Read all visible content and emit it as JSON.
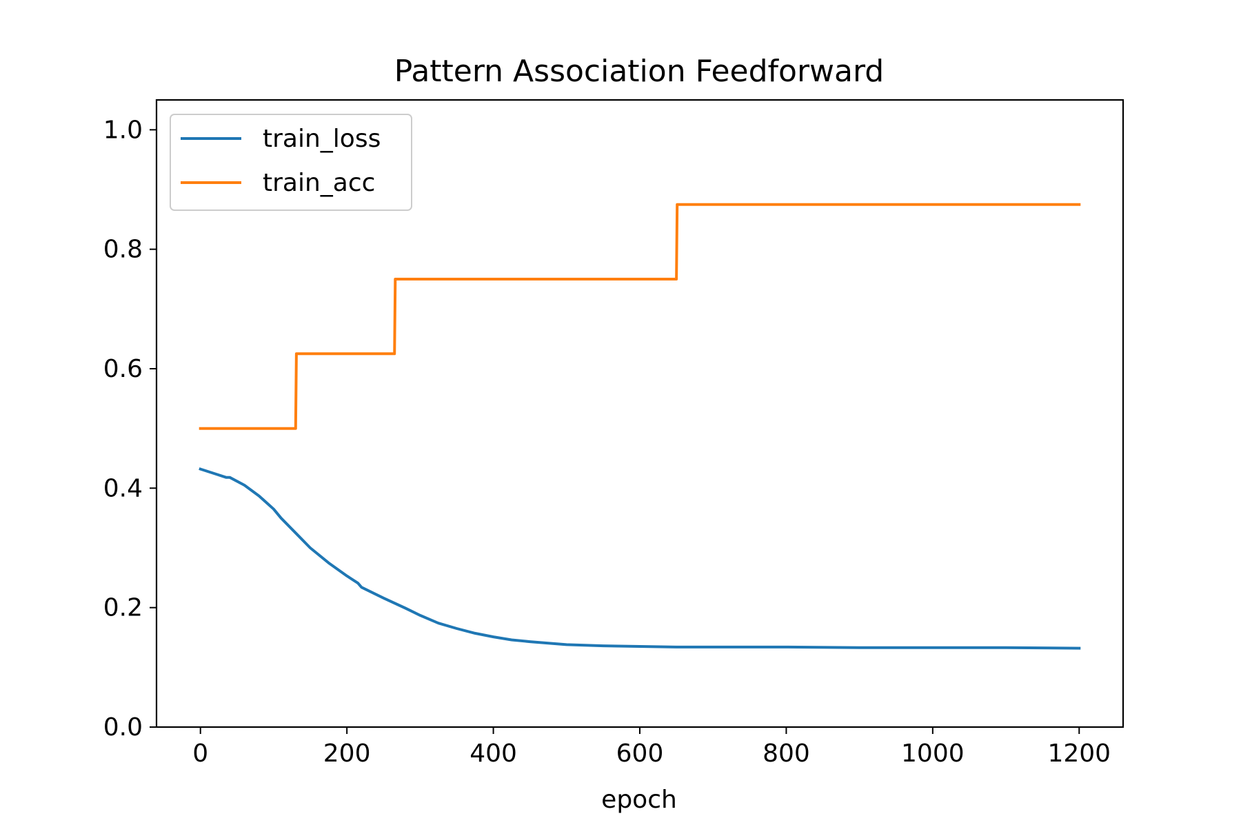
{
  "chart_data": {
    "type": "line",
    "title": "Pattern Association Feedforward",
    "xlabel": "epoch",
    "ylabel": "",
    "xlim": [
      -60,
      1260
    ],
    "ylim": [
      0.0,
      1.05
    ],
    "x_ticks": [
      0,
      200,
      400,
      600,
      800,
      1000,
      1200
    ],
    "y_ticks": [
      0.0,
      0.2,
      0.4,
      0.6,
      0.8,
      1.0
    ],
    "x_tick_labels": [
      "0",
      "200",
      "400",
      "600",
      "800",
      "1000",
      "1200"
    ],
    "y_tick_labels": [
      "0.0",
      "0.2",
      "0.4",
      "0.6",
      "0.8",
      "1.0"
    ],
    "grid": false,
    "legend_position": "upper-left",
    "series": [
      {
        "name": "train_loss",
        "color": "#1f77b4",
        "x": [
          0,
          20,
          35,
          40,
          60,
          80,
          100,
          110,
          130,
          150,
          175,
          200,
          215,
          220,
          250,
          280,
          300,
          325,
          350,
          375,
          400,
          425,
          450,
          500,
          550,
          600,
          650,
          700,
          800,
          900,
          1000,
          1100,
          1200
        ],
        "y": [
          0.432,
          0.424,
          0.418,
          0.418,
          0.405,
          0.387,
          0.365,
          0.35,
          0.325,
          0.3,
          0.275,
          0.253,
          0.241,
          0.234,
          0.216,
          0.199,
          0.187,
          0.174,
          0.165,
          0.157,
          0.151,
          0.146,
          0.143,
          0.138,
          0.136,
          0.135,
          0.134,
          0.134,
          0.134,
          0.133,
          0.133,
          0.133,
          0.132
        ]
      },
      {
        "name": "train_acc",
        "color": "#ff7f0e",
        "x": [
          0,
          130,
          131,
          265,
          266,
          650,
          651,
          1200
        ],
        "y": [
          0.5,
          0.5,
          0.625,
          0.625,
          0.75,
          0.75,
          0.875,
          0.875
        ]
      }
    ]
  }
}
